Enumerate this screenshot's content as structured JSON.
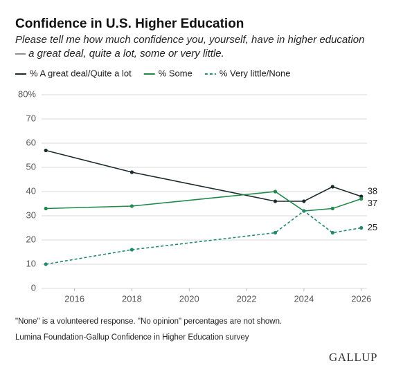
{
  "chart_data": {
    "type": "line",
    "title": "Confidence in U.S. Higher Education",
    "subtitle": [
      "Please tell me how much confidence you, yourself, have in higher education",
      "— a great deal, quite a lot, some or very little."
    ],
    "x": [
      2015,
      2018,
      2023,
      2024,
      2025,
      2026
    ],
    "series": [
      {
        "name": "% A great deal/Quite a lot",
        "color": "#1c2b2b",
        "dash": false,
        "values": [
          57,
          48,
          36,
          36,
          42,
          38
        ]
      },
      {
        "name": "% Some",
        "color": "#1e8a4a",
        "dash": false,
        "values": [
          33,
          34,
          40,
          32,
          33,
          37
        ]
      },
      {
        "name": "% Very little/None",
        "color": "#1f8a6e",
        "dash": true,
        "values": [
          10,
          16,
          23,
          32,
          23,
          25
        ]
      }
    ],
    "xlim": [
      2014.85,
      2026.2
    ],
    "xticks": [
      2016,
      2018,
      2020,
      2022,
      2024,
      2026
    ],
    "ylim": [
      0,
      80
    ],
    "yticks": [
      0,
      10,
      20,
      30,
      40,
      50,
      60,
      70,
      {
        "value": 80,
        "label": "80%"
      }
    ],
    "grid": true,
    "notes": [
      "\"None\" is a volunteered response. \"No opinion\" percentages are not shown.",
      "Lumina Foundation-Gallup Confidence in Higher Education survey"
    ],
    "brand": "GALLUP"
  }
}
